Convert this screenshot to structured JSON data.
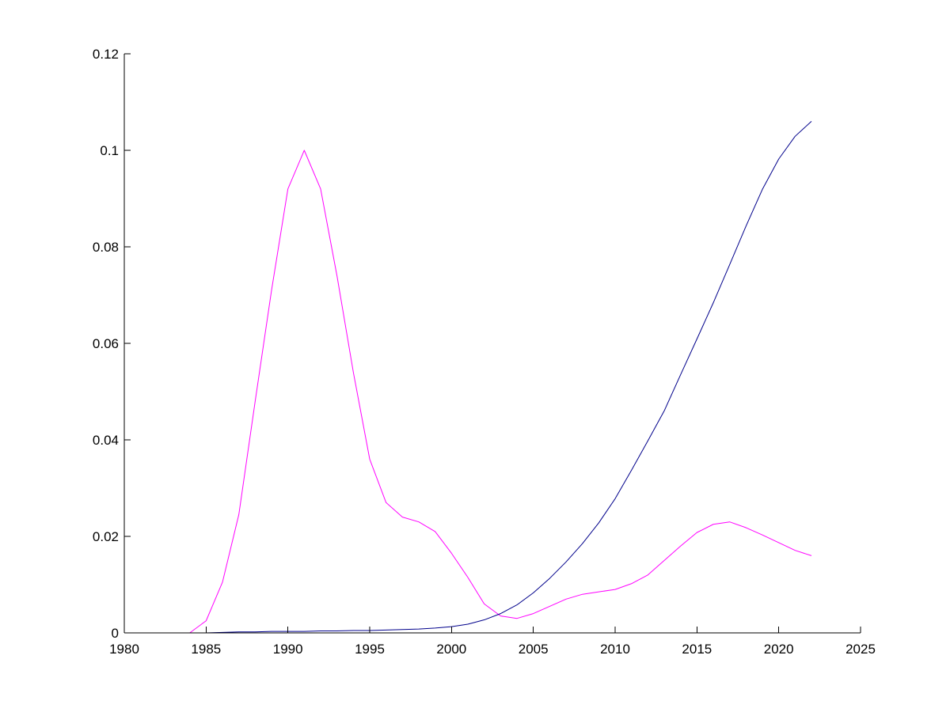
{
  "chart_data": {
    "type": "line",
    "title": "",
    "xlabel": "",
    "ylabel": "",
    "xlim": [
      1980,
      2025
    ],
    "ylim": [
      0,
      0.12
    ],
    "x_ticks": [
      {
        "value": 1980,
        "label": "1980"
      },
      {
        "value": 1985,
        "label": "1985"
      },
      {
        "value": 1990,
        "label": "1990"
      },
      {
        "value": 1995,
        "label": "1995"
      },
      {
        "value": 2000,
        "label": "2000"
      },
      {
        "value": 2005,
        "label": "2005"
      },
      {
        "value": 2010,
        "label": "2010"
      },
      {
        "value": 2015,
        "label": "2015"
      },
      {
        "value": 2020,
        "label": "2020"
      },
      {
        "value": 2025,
        "label": "2025"
      }
    ],
    "y_ticks": [
      {
        "value": 0,
        "label": "0"
      },
      {
        "value": 0.02,
        "label": "0.02"
      },
      {
        "value": 0.04,
        "label": "0.04"
      },
      {
        "value": 0.06,
        "label": "0.06"
      },
      {
        "value": 0.08,
        "label": "0.08"
      },
      {
        "value": 0.1,
        "label": "0.1"
      },
      {
        "value": 0.12,
        "label": "0.12"
      }
    ],
    "grid": false,
    "legend": "none",
    "x": [
      1980,
      1981,
      1982,
      1983,
      1984,
      1985,
      1986,
      1987,
      1988,
      1989,
      1990,
      1991,
      1992,
      1993,
      1994,
      1995,
      1996,
      1997,
      1998,
      1999,
      2000,
      2001,
      2002,
      2003,
      2004,
      2005,
      2006,
      2007,
      2008,
      2009,
      2010,
      2011,
      2012,
      2013,
      2014,
      2015,
      2016,
      2017,
      2018,
      2019,
      2020,
      2021,
      2022
    ],
    "series": [
      {
        "color": "#ff00ff",
        "values": [
          0,
          0,
          0,
          0,
          0,
          0.0025,
          0.0105,
          0.0245,
          0.048,
          0.071,
          0.092,
          0.1,
          0.092,
          0.074,
          0.054,
          0.036,
          0.027,
          0.024,
          0.023,
          0.021,
          0.0165,
          0.0115,
          0.006,
          0.0035,
          0.003,
          0.004,
          0.0055,
          0.007,
          0.008,
          0.0085,
          0.009,
          0.0102,
          0.012,
          0.015,
          0.018,
          0.0208,
          0.0225,
          0.023,
          0.0218,
          0.0203,
          0.0187,
          0.0171,
          0.016
        ]
      },
      {
        "color": "#00008b",
        "values": [
          0,
          0,
          0,
          0,
          0,
          0,
          0.0001,
          0.0002,
          0.0002,
          0.0003,
          0.0003,
          0.0003,
          0.0004,
          0.0004,
          0.0005,
          0.0005,
          0.0006,
          0.0007,
          0.0008,
          0.001,
          0.0013,
          0.0018,
          0.0027,
          0.004,
          0.0058,
          0.0083,
          0.0113,
          0.0147,
          0.0185,
          0.0228,
          0.0278,
          0.0337,
          0.0398,
          0.046,
          0.0535,
          0.0609,
          0.0684,
          0.0763,
          0.0843,
          0.0919,
          0.0982,
          0.1029,
          0.106
        ]
      }
    ]
  }
}
